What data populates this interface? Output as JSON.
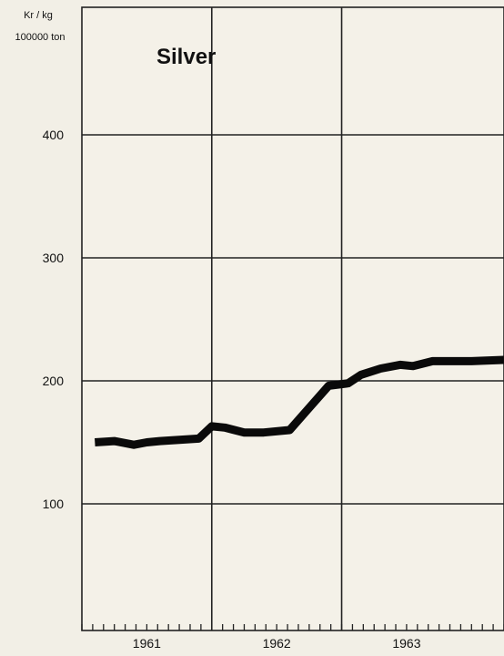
{
  "chart_data": {
    "type": "line",
    "title": "Silver",
    "ylabel_line1": "Kr / kg",
    "ylabel_line2": "100000 ton",
    "xlabel": "",
    "ylim": [
      0,
      450
    ],
    "xlim": [
      1960.5,
      1963.75
    ],
    "yticks": [
      100,
      200,
      300,
      400
    ],
    "ytick_labels": [
      "100",
      "200",
      "300",
      "400"
    ],
    "x_tick_labels": [
      "1961",
      "1962",
      "1963"
    ],
    "x_tick_label_positions": [
      1961.0,
      1962.0,
      1963.0
    ],
    "year_boundaries": [
      1961.5,
      1962.5
    ],
    "grid": true,
    "series": [
      {
        "name": "",
        "x": [
          1960.6,
          1960.75,
          1960.9,
          1961.0,
          1961.1,
          1961.25,
          1961.4,
          1961.5,
          1961.6,
          1961.75,
          1961.9,
          1962.1,
          1962.25,
          1962.4,
          1962.55,
          1962.65,
          1962.8,
          1962.95,
          1963.05,
          1963.2,
          1963.35,
          1963.5,
          1963.75
        ],
        "values": [
          150,
          151,
          148,
          150,
          151,
          152,
          153,
          163,
          162,
          158,
          158,
          160,
          178,
          196,
          198,
          205,
          210,
          213,
          212,
          216,
          216,
          216,
          217
        ]
      }
    ],
    "line_color": "#0a0a0a"
  }
}
